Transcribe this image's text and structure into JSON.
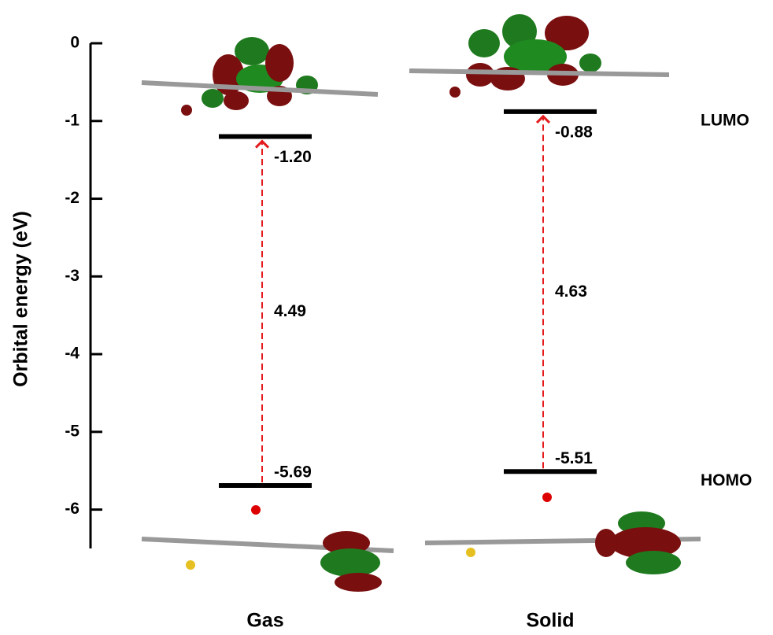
{
  "chart_data": {
    "type": "energy-levels",
    "y_label": "Orbital energy (eV)",
    "categories": [
      "Gas",
      "Solid"
    ],
    "series": [
      {
        "name": "LUMO",
        "color": "#000000",
        "values": [
          -1.2,
          -0.88
        ],
        "value_labels": [
          "-1.20",
          "-0.88"
        ]
      },
      {
        "name": "HOMO",
        "color": "#000000",
        "values": [
          -5.69,
          -5.51
        ]
      }
    ],
    "gaps": {
      "color": "#e41a1c",
      "values": [
        4.49,
        4.63
      ]
    },
    "ylim": [
      -6.5,
      0
    ],
    "yticks": [
      0,
      -1,
      -2,
      -3,
      -4,
      -5,
      -6
    ]
  }
}
